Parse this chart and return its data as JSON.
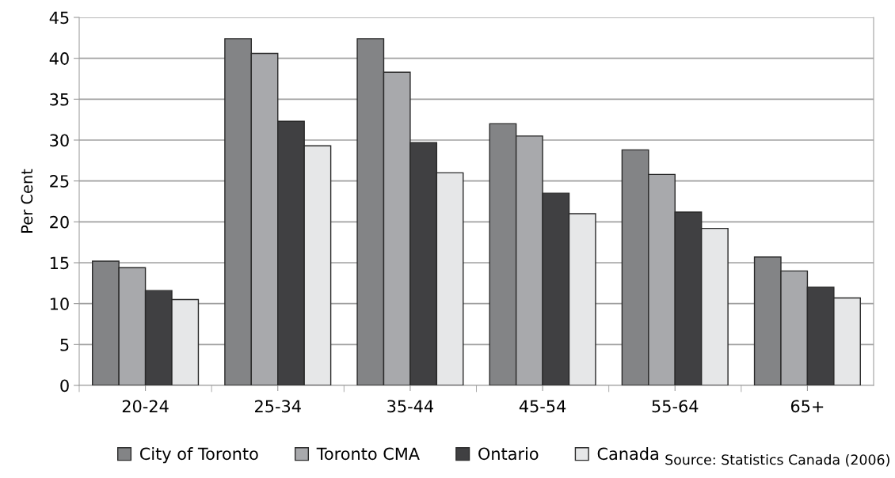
{
  "chart_data": {
    "type": "bar",
    "ylabel": "Per Cent",
    "categories": [
      "20-24",
      "25-34",
      "35-44",
      "45-54",
      "55-64",
      "65+"
    ],
    "series": [
      {
        "name": "City of Toronto",
        "color": "#838486",
        "values": [
          15.2,
          42.4,
          42.4,
          32.0,
          28.8,
          15.7
        ]
      },
      {
        "name": "Toronto CMA",
        "color": "#a8a9ac",
        "values": [
          14.4,
          40.6,
          38.3,
          30.5,
          25.8,
          14.0
        ]
      },
      {
        "name": "Ontario",
        "color": "#404042",
        "values": [
          11.6,
          32.3,
          29.7,
          23.5,
          21.2,
          12.0
        ]
      },
      {
        "name": "Canada",
        "color": "#e6e7e8",
        "values": [
          10.5,
          29.3,
          26.0,
          21.0,
          19.2,
          10.7
        ]
      }
    ],
    "ylim": [
      0,
      45
    ],
    "yticks": [
      0,
      5,
      10,
      15,
      20,
      25,
      30,
      35,
      40,
      45
    ],
    "grid": "y",
    "legend": "bottom",
    "annotations": [
      "Source: Statistics Canada (2006)"
    ]
  }
}
